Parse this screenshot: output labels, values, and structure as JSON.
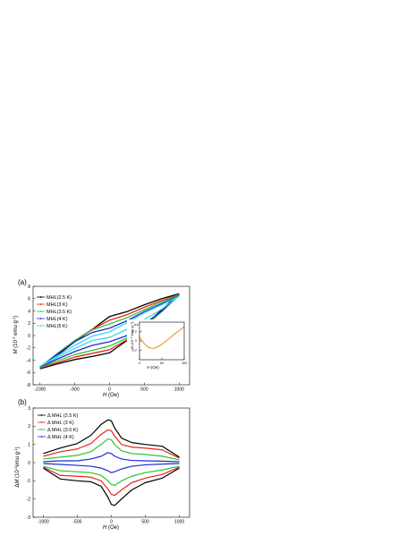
{
  "chart_data": [
    {
      "panel_label": "(a)",
      "type": "line",
      "xlabel_italic": "H",
      "xlabel_unit": " (Oe)",
      "ylabel_italic": "M",
      "ylabel_unit": " (10",
      "ylabel_exp": "-3",
      "ylabel_tail": " emu g",
      "ylabel_tail_exp": "-1",
      "ylabel_close": ")",
      "xlim": [
        -1100,
        1150
      ],
      "ylim": [
        -8,
        8
      ],
      "xticks": [
        -1000,
        -500,
        0,
        500,
        1000
      ],
      "yticks": [
        -8,
        -6,
        -4,
        -2,
        0,
        2,
        4,
        6,
        8
      ],
      "legend_position": "top-left",
      "series": [
        {
          "name": "MHL(2.5 K)",
          "color": "#000000",
          "x": [
            -1000,
            -750,
            -500,
            -250,
            0,
            250,
            500,
            750,
            1000
          ],
          "upper": [
            -5.4,
            -3.2,
            -1.0,
            1.0,
            3.1,
            3.9,
            5.0,
            6.0,
            6.8
          ],
          "lower": [
            -5.4,
            -4.6,
            -3.9,
            -3.4,
            -2.8,
            -0.8,
            1.6,
            4.2,
            6.8
          ]
        },
        {
          "name": "MHL(3 K)",
          "color": "#e8251d",
          "x": [
            -1000,
            -750,
            -500,
            -250,
            0,
            250,
            500,
            750,
            1000
          ],
          "upper": [
            -5.3,
            -3.0,
            -0.8,
            1.0,
            2.5,
            3.4,
            4.6,
            5.7,
            6.7
          ],
          "lower": [
            -5.3,
            -4.4,
            -3.5,
            -2.9,
            -2.3,
            -0.7,
            1.4,
            3.9,
            6.7
          ]
        },
        {
          "name": "MHL(3.5 K)",
          "color": "#2ec52e",
          "x": [
            -1000,
            -750,
            -500,
            -250,
            0,
            250,
            500,
            750,
            1000
          ],
          "upper": [
            -5.2,
            -2.9,
            -0.8,
            0.9,
            1.9,
            2.9,
            4.2,
            5.5,
            6.6
          ],
          "lower": [
            -5.2,
            -4.1,
            -3.1,
            -2.4,
            -1.7,
            -0.4,
            1.6,
            3.9,
            6.6
          ]
        },
        {
          "name": "MHL(4 K)",
          "color": "#1f2bd6",
          "x": [
            -1000,
            -750,
            -500,
            -250,
            0,
            250,
            500,
            750,
            1000
          ],
          "upper": [
            -5.1,
            -3.0,
            -1.0,
            0.5,
            1.2,
            2.4,
            3.9,
            5.2,
            6.5
          ],
          "lower": [
            -5.1,
            -3.8,
            -2.6,
            -1.6,
            -1.0,
            0.0,
            1.9,
            4.0,
            6.5
          ]
        },
        {
          "name": "MHL(5 K)",
          "color": "#3fd4ea",
          "x": [
            -1000,
            -750,
            -500,
            -250,
            0,
            250,
            500,
            750,
            1000
          ],
          "upper": [
            -5.0,
            -3.3,
            -1.6,
            -0.1,
            0.6,
            2.1,
            3.7,
            5.0,
            6.4
          ],
          "lower": [
            -5.0,
            -3.5,
            -2.1,
            -0.8,
            -0.3,
            1.0,
            2.6,
            4.3,
            6.4
          ]
        }
      ],
      "inset": {
        "xlabel_italic": "H",
        "xlabel_unit": " (Oe)",
        "ylabel": "M (10⁻³ emu g⁻¹)",
        "legend": "a-b",
        "color": "#f39c2b",
        "xlim": [
          0,
          100
        ],
        "ylim": [
          -0.4,
          0.4
        ],
        "xticks": [
          0,
          50,
          100
        ],
        "yticks": [
          -0.2,
          0.0,
          0.2
        ],
        "x": [
          0,
          10,
          20,
          30,
          40,
          50,
          60,
          70,
          80,
          90,
          100
        ],
        "y": [
          0.08,
          -0.05,
          -0.14,
          -0.16,
          -0.13,
          -0.07,
          0.0,
          0.08,
          0.16,
          0.23,
          0.3
        ]
      }
    },
    {
      "panel_label": "(b)",
      "type": "line",
      "xlabel_italic": "H",
      "xlabel_unit": " (Oe)",
      "ylabel_prefix": "Δ",
      "ylabel_italic": "M",
      "ylabel_unit": " (10",
      "ylabel_exp": "-3",
      "ylabel_tail": "emu g",
      "ylabel_tail_exp": "-1",
      "ylabel_close": ")",
      "xlim": [
        -1150,
        1150
      ],
      "ylim": [
        -3,
        3
      ],
      "xticks": [
        -1000,
        -500,
        0,
        500,
        1000
      ],
      "yticks": [
        -3,
        -2,
        -1,
        0,
        1,
        2,
        3
      ],
      "legend_position": "top-left",
      "series": [
        {
          "name": "Δ MHL (2.5 K)",
          "color": "#000000",
          "x": [
            -1000,
            -750,
            -500,
            -300,
            -150,
            -50,
            0,
            50,
            150,
            300,
            500,
            750,
            1000
          ],
          "upper": [
            0.5,
            0.8,
            1.05,
            1.5,
            2.1,
            2.35,
            2.3,
            1.9,
            1.35,
            1.1,
            1.0,
            0.9,
            0.3
          ],
          "lower": [
            -0.3,
            -0.9,
            -1.0,
            -1.05,
            -1.3,
            -1.9,
            -2.3,
            -2.35,
            -2.0,
            -1.5,
            -1.1,
            -0.85,
            -0.3
          ]
        },
        {
          "name": "Δ MHL (3 K)",
          "color": "#e8251d",
          "x": [
            -1000,
            -750,
            -500,
            -300,
            -150,
            -50,
            0,
            50,
            150,
            300,
            500,
            750,
            1000
          ],
          "upper": [
            0.35,
            0.6,
            0.75,
            1.05,
            1.55,
            1.8,
            1.75,
            1.45,
            1.0,
            0.85,
            0.8,
            0.7,
            0.25
          ],
          "lower": [
            -0.25,
            -0.7,
            -0.75,
            -0.8,
            -1.0,
            -1.45,
            -1.75,
            -1.8,
            -1.5,
            -1.1,
            -0.85,
            -0.65,
            -0.25
          ]
        },
        {
          "name": "Δ MHL (3.5 K)",
          "color": "#2ec52e",
          "x": [
            -1000,
            -750,
            -500,
            -300,
            -150,
            -50,
            0,
            50,
            150,
            300,
            500,
            750,
            1000
          ],
          "upper": [
            0.2,
            0.3,
            0.4,
            0.6,
            1.0,
            1.3,
            1.25,
            1.0,
            0.65,
            0.5,
            0.45,
            0.35,
            0.15
          ],
          "lower": [
            -0.2,
            -0.45,
            -0.5,
            -0.55,
            -0.7,
            -1.0,
            -1.2,
            -1.25,
            -1.0,
            -0.75,
            -0.55,
            -0.4,
            -0.2
          ]
        },
        {
          "name": "Δ MHL (4 K)",
          "color": "#1f2bd6",
          "x": [
            -1000,
            -750,
            -500,
            -300,
            -150,
            -50,
            0,
            50,
            150,
            300,
            500,
            750,
            1000
          ],
          "upper": [
            0.05,
            0.1,
            0.1,
            0.2,
            0.35,
            0.55,
            0.5,
            0.35,
            0.2,
            0.12,
            0.1,
            0.08,
            0.05
          ],
          "lower": [
            -0.05,
            -0.1,
            -0.15,
            -0.2,
            -0.3,
            -0.45,
            -0.55,
            -0.5,
            -0.35,
            -0.2,
            -0.12,
            -0.08,
            -0.05
          ]
        }
      ]
    }
  ]
}
